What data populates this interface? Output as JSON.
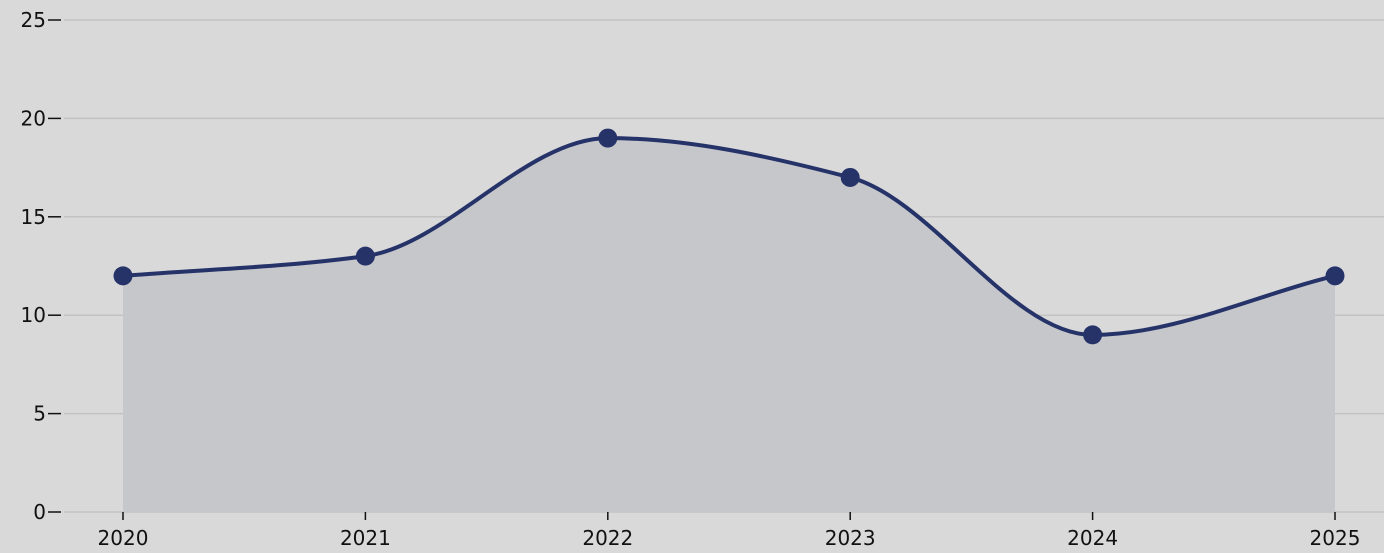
{
  "colors": {
    "background": "#d9d9d9",
    "line": "#253369",
    "area": "#c6c7cb",
    "grid": "#c2c2c2"
  },
  "chart_data": {
    "type": "area",
    "x": [
      "2020",
      "2021",
      "2022",
      "2023",
      "2024",
      "2025"
    ],
    "series": [
      {
        "values": [
          12,
          13,
          19,
          17,
          9,
          12
        ]
      }
    ],
    "y_ticks": [
      "0",
      "5",
      "10",
      "15",
      "20",
      "25"
    ],
    "ylim": [
      0,
      25
    ],
    "grid": true,
    "markers": true,
    "smooth": true
  }
}
